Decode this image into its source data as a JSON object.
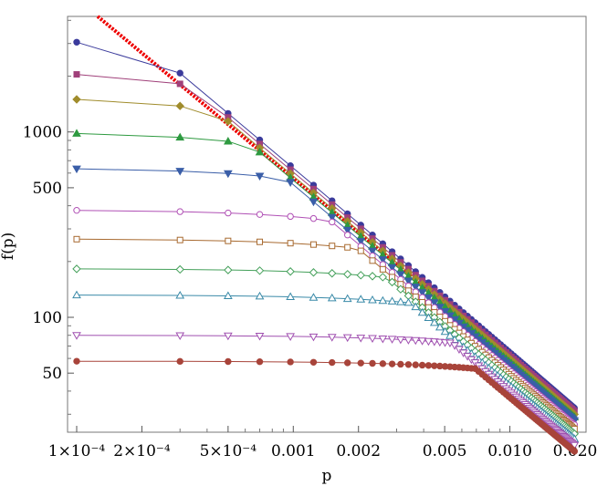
{
  "chart_data": {
    "type": "scatter",
    "xlabel": "p",
    "ylabel": "f(p)",
    "x_scale": "log",
    "y_scale": "log",
    "xlim": [
      0.0001,
      0.02
    ],
    "ylim": [
      24,
      4200
    ],
    "grid": false,
    "x_ticks": [
      {
        "value": 0.0001,
        "label": "1×10⁻⁴"
      },
      {
        "value": 0.0002,
        "label": "2×10⁻⁴"
      },
      {
        "value": 0.0005,
        "label": "5×10⁻⁴"
      },
      {
        "value": 0.001,
        "label": "0.001"
      },
      {
        "value": 0.002,
        "label": "0.002"
      },
      {
        "value": 0.005,
        "label": "0.005"
      },
      {
        "value": 0.01,
        "label": "0.010"
      },
      {
        "value": 0.02,
        "label": "0.020"
      }
    ],
    "y_ticks": [
      {
        "value": 50,
        "label": "50"
      },
      {
        "value": 100,
        "label": "100"
      },
      {
        "value": 500,
        "label": "500"
      },
      {
        "value": 1000,
        "label": "1000"
      }
    ],
    "reference_line": {
      "color": "#ee0000",
      "style": "dotted",
      "points": [
        [
          0.000125,
          4200
        ],
        [
          0.02,
          31
        ]
      ]
    },
    "series": [
      {
        "color": "#3b3b9c",
        "marker": "circle",
        "filled": true,
        "y0": 3300,
        "b": 0.0008
      },
      {
        "color": "#a0407a",
        "marker": "square",
        "filled": true,
        "y0": 2150,
        "b": 0.0012
      },
      {
        "color": "#a08c2c",
        "marker": "diamond",
        "filled": true,
        "y0": 1550,
        "b": 0.0017
      },
      {
        "color": "#2e9a40",
        "marker": "triangle-up",
        "filled": true,
        "y0": 1000,
        "b": 0.0028
      },
      {
        "color": "#3a5ea8",
        "marker": "triangle-down",
        "filled": true,
        "y0": 640,
        "b": 0.0045
      },
      {
        "color": "#b050b5",
        "marker": "circle",
        "filled": false,
        "y0": 380,
        "b": 0.0075
      },
      {
        "color": "#a86a30",
        "marker": "square",
        "filled": false,
        "y0": 265,
        "b": 0.011
      },
      {
        "color": "#44a05a",
        "marker": "diamond",
        "filled": false,
        "y0": 183,
        "b": 0.016
      },
      {
        "color": "#3a8aa8",
        "marker": "triangle-up",
        "filled": false,
        "y0": 132,
        "b": 0.023
      },
      {
        "color": "#a050b0",
        "marker": "triangle-down",
        "filled": false,
        "y0": 80,
        "b": 0.036
      },
      {
        "color": "#a8443a",
        "marker": "circle",
        "filled": true,
        "y0": 58,
        "b": 0.048
      }
    ]
  }
}
